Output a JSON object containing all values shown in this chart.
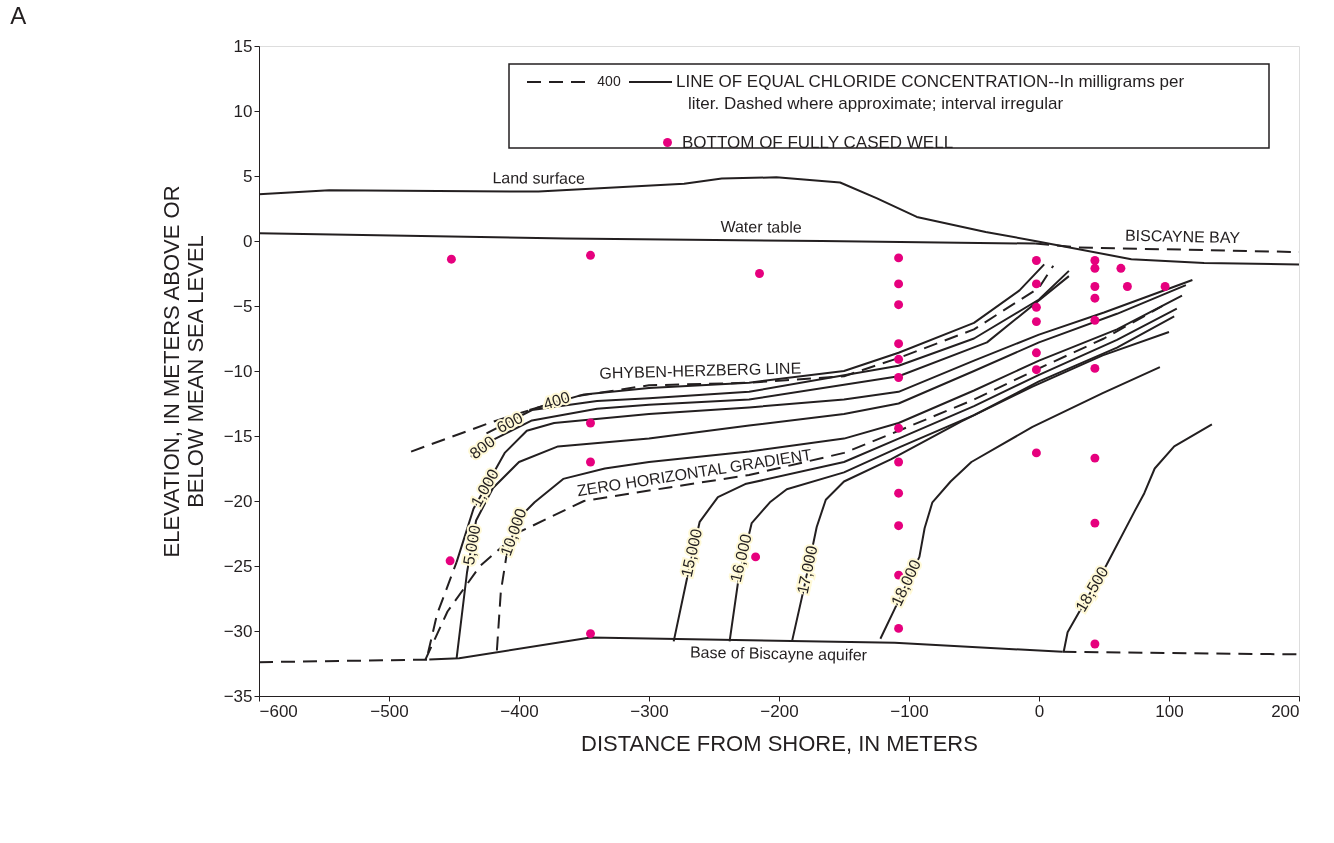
{
  "chart_data": {
    "type": "line",
    "title": "A",
    "xlabel": "DISTANCE FROM SHORE, IN METERS",
    "ylabel": "ELEVATION, IN METERS ABOVE OR BELOW MEAN SEA LEVEL",
    "xlim": [
      -600,
      200
    ],
    "xticks": [
      -600,
      -500,
      -400,
      -300,
      -200,
      -100,
      0,
      100,
      200
    ],
    "ylim": [
      -35,
      15
    ],
    "yticks": [
      -35,
      -30,
      -25,
      -20,
      -15,
      -10,
      -5,
      0,
      5,
      10,
      15
    ],
    "legend": "top right",
    "marker": "none",
    "series": [
      {
        "color": "#231f20",
        "line_style": "solid",
        "x": [
          -600,
          -546,
          -385,
          -273,
          -244,
          -202,
          -153,
          -125,
          -94,
          -41,
          -3,
          71,
          127,
          200
        ],
        "values": [
          3.6,
          3.9,
          3.8,
          4.4,
          4.8,
          4.9,
          4.5,
          3.3,
          1.85,
          0.7,
          0.0,
          -1.4,
          -1.7,
          -1.8
        ]
      },
      {
        "color": "#231f20",
        "line_style": "solid",
        "x": [
          -600,
          -364,
          -167,
          -3
        ],
        "values": [
          0.6,
          0.2,
          0.0,
          -0.2
        ]
      },
      {
        "color": "#231f20",
        "line_style": "dashed",
        "x": [
          -3,
          30,
          200
        ],
        "values": [
          -0.2,
          -0.5,
          -0.85
        ]
      },
      {
        "color": "#231f20",
        "line_style": "solid",
        "x": [
          -469,
          -446,
          -345,
          -111,
          18
        ],
        "values": [
          -32.2,
          -32.1,
          -30.5,
          -30.9,
          -31.6
        ]
      },
      {
        "color": "#231f20",
        "line_style": "dashed",
        "x": [
          -600,
          -469
        ],
        "values": [
          -32.4,
          -32.2
        ]
      },
      {
        "color": "#231f20",
        "line_style": "dashed",
        "x": [
          18,
          200
        ],
        "values": [
          -31.6,
          -31.8
        ]
      },
      {
        "name": "LINE OF EQUAL CHLORIDE CONCENTRATION--In milligrams per liter. Dashed where approximate; interval irregular",
        "color": "#231f20",
        "line_style": "solid",
        "x": [
          -392,
          -350,
          -300,
          -223,
          -150,
          -108,
          -50,
          -15,
          4
        ],
        "values": [
          -13.0,
          -11.8,
          -11.3,
          -10.9,
          -10.0,
          -8.6,
          -6.3,
          -3.8,
          -1.8
        ]
      },
      {
        "color": "#231f20",
        "line_style": "dashed",
        "x": [
          -483,
          -420,
          -360,
          -300,
          -223,
          -150,
          -108,
          -50,
          0,
          11
        ],
        "values": [
          -16.2,
          -13.9,
          -12.0,
          -11.1,
          -10.9,
          -10.4,
          -9.0,
          -6.8,
          -3.6,
          -1.9
        ]
      },
      {
        "color": "#231f20",
        "line_style": "solid",
        "x": [
          -425,
          -390,
          -340,
          -300,
          -223,
          -108,
          -50,
          0,
          23
        ],
        "values": [
          -14.8,
          -13.0,
          -12.3,
          -12.1,
          -11.6,
          -9.6,
          -7.5,
          -4.5,
          -2.3
        ]
      },
      {
        "color": "#231f20",
        "line_style": "solid",
        "x": [
          -437,
          -420,
          -390,
          -340,
          -300,
          -223,
          -108,
          -40,
          23
        ],
        "values": [
          -16.6,
          -15.3,
          -13.8,
          -12.9,
          -12.6,
          -12.2,
          -10.4,
          -7.8,
          -2.7
        ]
      },
      {
        "color": "#231f20",
        "line_style": "solid",
        "x": [
          -448,
          -435,
          -411,
          -394,
          -373,
          -300,
          -223,
          -150,
          -108,
          -50,
          0,
          50,
          118
        ],
        "values": [
          -24.7,
          -20.6,
          -16.3,
          -14.6,
          -14.0,
          -13.3,
          -12.8,
          -12.2,
          -11.6,
          -9.2,
          -7.2,
          -5.5,
          -3.0
        ]
      },
      {
        "color": "#231f20",
        "line_style": "dashed",
        "x": [
          -470,
          -463,
          -448
        ],
        "values": [
          -31.7,
          -28.7,
          -24.7
        ]
      },
      {
        "color": "#231f20",
        "line_style": "solid",
        "x": [
          -448,
          -440,
          -433,
          -420,
          -400,
          -370,
          -300,
          -223,
          -150,
          -108,
          -50,
          0,
          60,
          113
        ],
        "values": [
          -32.1,
          -25.5,
          -21.5,
          -19.0,
          -17.0,
          -15.8,
          -15.2,
          -14.2,
          -13.3,
          -12.5,
          -10.0,
          -7.8,
          -5.6,
          -3.4
        ]
      },
      {
        "color": "#231f20",
        "line_style": "solid",
        "x": [
          -409,
          -400,
          -388,
          -366,
          -334,
          -300,
          -223,
          -150,
          -108,
          -50,
          0,
          60,
          110
        ],
        "values": [
          -23.8,
          -21.3,
          -20.1,
          -18.3,
          -17.5,
          -17.0,
          -16.2,
          -15.2,
          -14.0,
          -11.5,
          -9.2,
          -6.8,
          -4.2
        ]
      },
      {
        "color": "#231f20",
        "line_style": "dashed",
        "x": [
          -417,
          -414,
          -409
        ],
        "values": [
          -31.5,
          -27.0,
          -23.8
        ]
      },
      {
        "color": "#231f20",
        "line_style": "dashed",
        "x": [
          -472,
          -455,
          -430,
          -400,
          -350,
          -300,
          -223,
          -150,
          -108,
          -50,
          0,
          50,
          95
        ],
        "values": [
          -32.2,
          -28.5,
          -25.0,
          -22.4,
          -20.0,
          -19.2,
          -18.0,
          -16.3,
          -14.6,
          -12.2,
          -9.8,
          -7.5,
          -5.0
        ]
      },
      {
        "color": "#231f20",
        "line_style": "solid",
        "x": [
          -281,
          -270,
          -261,
          -247,
          -226,
          -150,
          -108,
          -50,
          0,
          60,
          106
        ],
        "values": [
          -30.8,
          -25.6,
          -21.6,
          -19.7,
          -18.7,
          -17.0,
          -15.2,
          -12.7,
          -10.3,
          -7.6,
          -5.2
        ]
      },
      {
        "color": "#231f20",
        "line_style": "solid",
        "x": [
          -238,
          -231,
          -221,
          -207,
          -194,
          -150,
          -108,
          -50,
          0,
          60,
          104
        ],
        "values": [
          -30.8,
          -25.9,
          -21.7,
          -20.1,
          -19.1,
          -17.8,
          -15.9,
          -13.4,
          -10.8,
          -8.2,
          -5.8
        ]
      },
      {
        "color": "#231f20",
        "line_style": "solid",
        "x": [
          -190,
          -181,
          -171,
          -164,
          -150,
          -114,
          -60,
          -5,
          49,
          100
        ],
        "values": [
          -30.8,
          -26.8,
          -22.0,
          -19.9,
          -18.5,
          -16.8,
          -13.9,
          -11.2,
          -8.8,
          -7.0
        ]
      },
      {
        "color": "#231f20",
        "line_style": "solid",
        "x": [
          -122,
          -111,
          -92,
          -88,
          -82,
          -68,
          -52,
          -5,
          49,
          93
        ],
        "values": [
          -30.6,
          -28.3,
          -24.3,
          -22.1,
          -20.1,
          -18.5,
          -17.0,
          -14.3,
          -11.7,
          -9.7
        ]
      },
      {
        "color": "#231f20",
        "line_style": "solid",
        "x": [
          19,
          22,
          30,
          52,
          74,
          81,
          89,
          104,
          133
        ],
        "values": [
          -31.6,
          -30.1,
          -28.7,
          -24.9,
          -20.7,
          -19.4,
          -17.5,
          -15.8,
          -14.1
        ]
      },
      {
        "type": "scatter",
        "name": "BOTTOM OF FULLY CASED WELL",
        "color": "#e6007e",
        "marker": "circle",
        "x": [
          -452,
          -345,
          -215,
          -453,
          -345,
          -345,
          -345,
          -218,
          -108,
          -108,
          -108,
          -108,
          -108,
          -108,
          -108,
          -108,
          -108,
          -108,
          -108,
          -108,
          -2,
          -2,
          -2,
          -2,
          -2,
          -2,
          -2,
          43,
          43,
          43,
          43,
          43,
          43,
          43,
          43,
          43,
          63,
          68,
          97
        ],
        "values": [
          -1.4,
          -1.1,
          -2.5,
          -24.6,
          -14.0,
          -17.0,
          -30.2,
          -24.3,
          -1.3,
          -3.3,
          -4.9,
          -7.9,
          -9.1,
          -10.5,
          -14.4,
          -17.0,
          -19.4,
          -21.9,
          -25.7,
          -29.8,
          -1.5,
          -3.3,
          -5.1,
          -6.2,
          -8.6,
          -9.9,
          -16.3,
          -1.5,
          -2.1,
          -3.5,
          -4.4,
          -6.1,
          -9.8,
          -16.7,
          -21.7,
          -31.0,
          -2.1,
          -3.5,
          -3.5
        ]
      }
    ],
    "annotations": [
      "400",
      {
        "text": "Land surface",
        "x": -385,
        "y": 3.8
      },
      {
        "text": "Water table",
        "x": -214,
        "y": 0.05
      },
      {
        "text": "BISCAYNE BAY",
        "x": 110,
        "y": -0.69
      },
      {
        "text": "Base of Biscayne aquifer",
        "x": -200,
        "y": -30.7
      },
      {
        "text": "GHYBEN-HERZBERG LINE",
        "x": -260,
        "y": -11.0
      },
      {
        "text": "ZERO HORIZONTAL GRADIENT",
        "x": -262,
        "y": -18.8
      },
      {
        "text": "400",
        "x": -371,
        "y": -12.3
      },
      {
        "text": "600",
        "x": -407,
        "y": -14.0
      },
      {
        "text": "800",
        "x": -428,
        "y": -15.9
      },
      {
        "text": "1,000",
        "x": -426,
        "y": -19.0
      },
      {
        "text": "5,000",
        "x": -436,
        "y": -23.4
      },
      {
        "text": "10,000",
        "x": -404,
        "y": -22.4
      },
      {
        "text": "15,000",
        "x": -267,
        "y": -24.0
      },
      {
        "text": "16,000",
        "x": -229,
        "y": -24.4
      },
      {
        "text": "17,000",
        "x": -178,
        "y": -25.3
      },
      {
        "text": "18,000",
        "x": -102,
        "y": -26.3
      },
      {
        "text": "18,500",
        "x": 41,
        "y": -26.8
      }
    ]
  }
}
